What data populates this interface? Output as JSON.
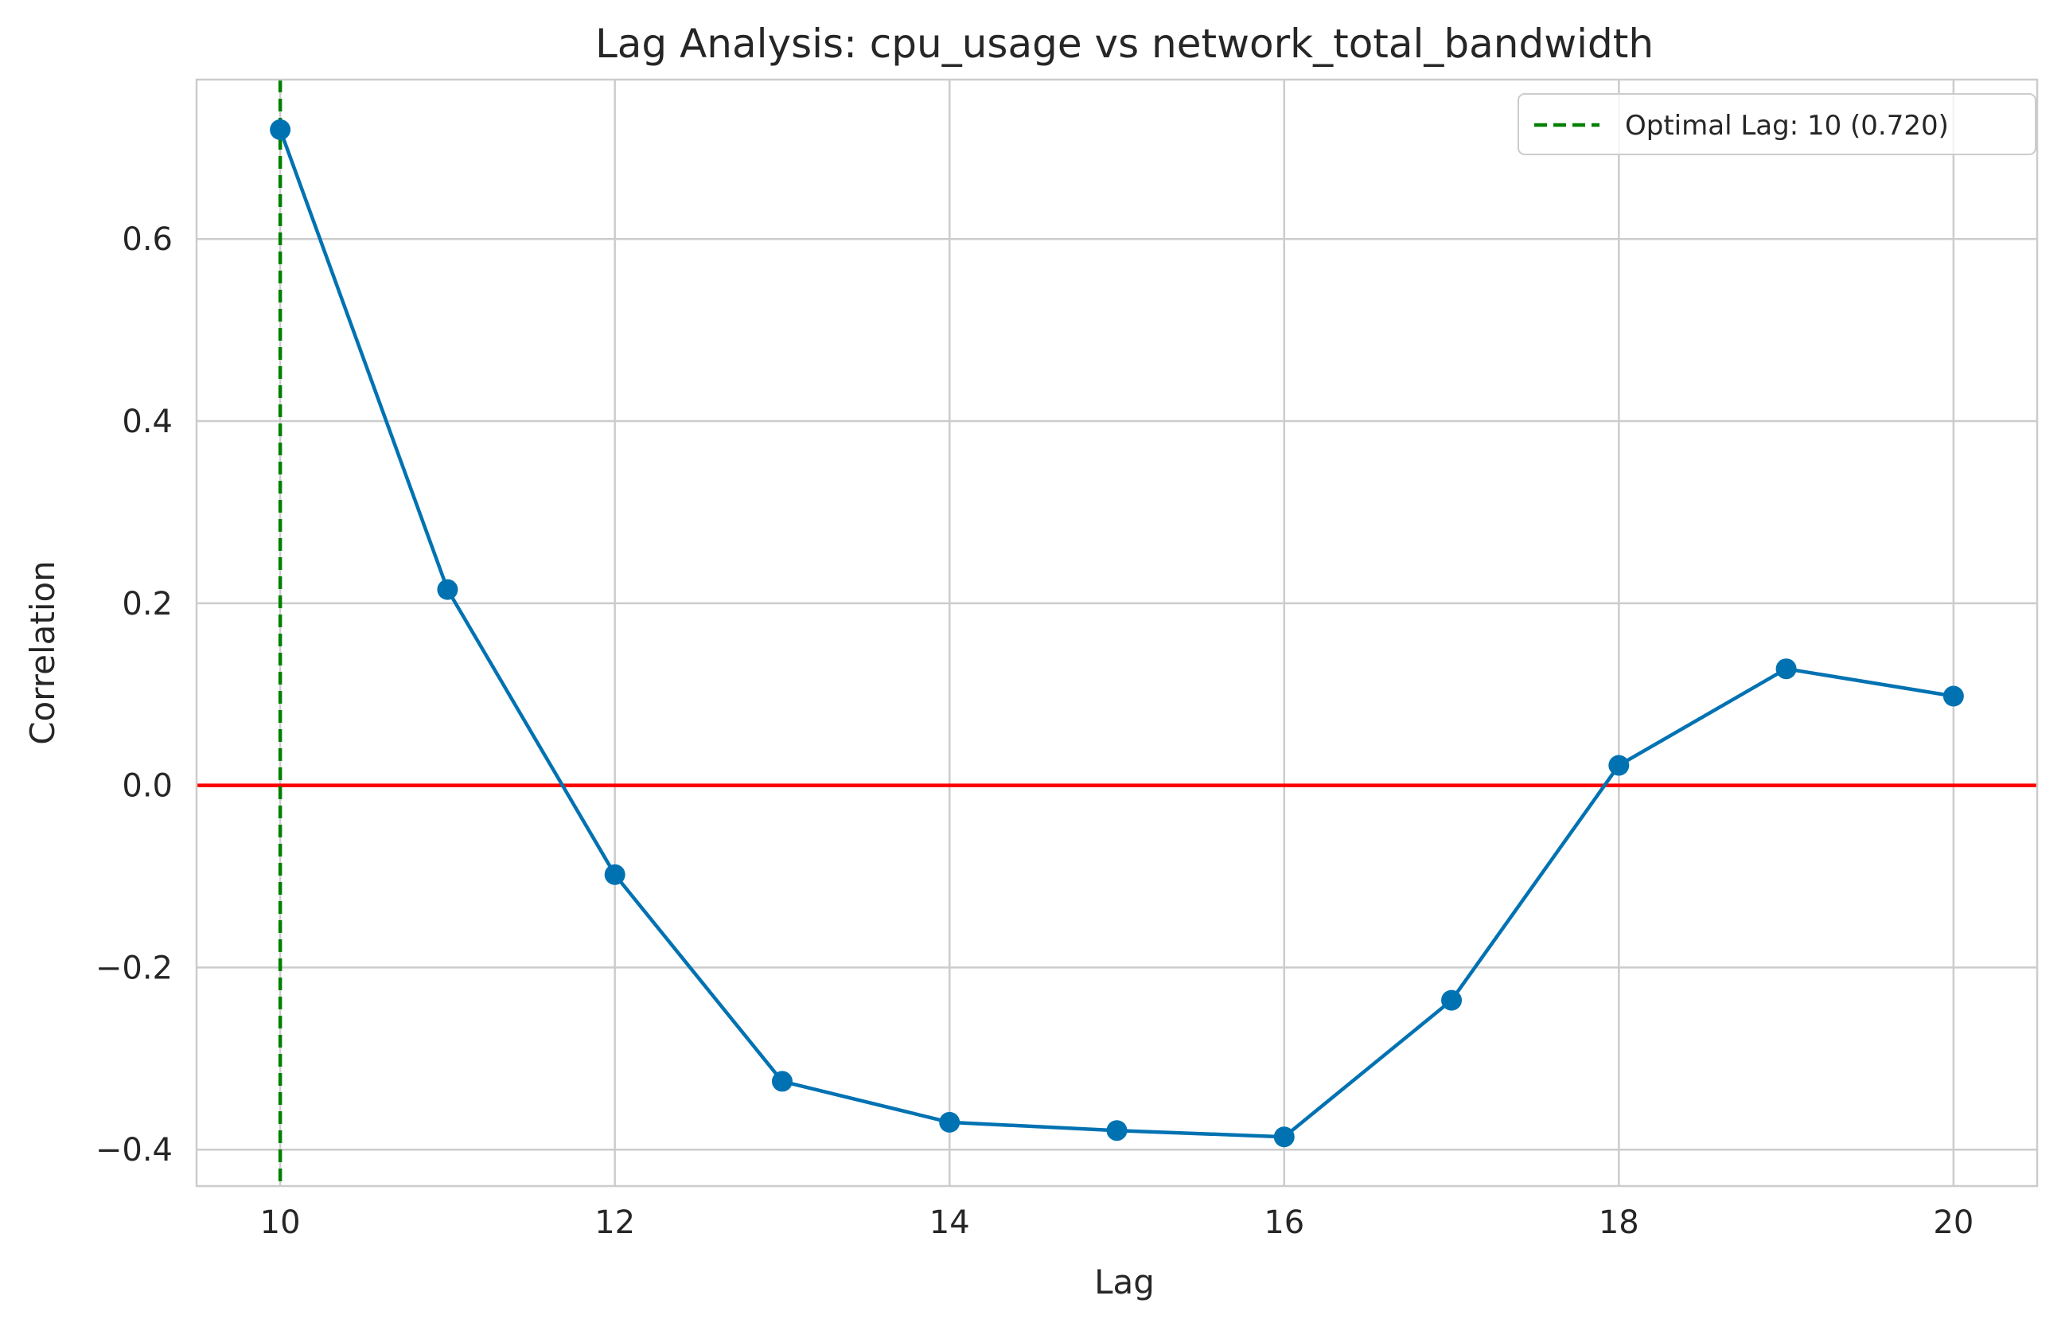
{
  "chart_data": {
    "type": "line",
    "title": "Lag Analysis: cpu_usage vs network_total_bandwidth",
    "xlabel": "Lag",
    "ylabel": "Correlation",
    "xlim": [
      9.5,
      20.5
    ],
    "ylim": [
      -0.44,
      0.775
    ],
    "x_ticks": [
      10,
      12,
      14,
      16,
      18,
      20
    ],
    "x_tick_labels": [
      "10",
      "12",
      "14",
      "16",
      "18",
      "20"
    ],
    "y_ticks": [
      0.6,
      0.4,
      0.2,
      0.0,
      -0.2,
      -0.4
    ],
    "y_tick_labels": [
      "0.6",
      "0.4",
      "0.2",
      "0.0",
      "−0.2",
      "−0.4"
    ],
    "grid": true,
    "series": [
      {
        "x": [
          10,
          11,
          12,
          13,
          14,
          15,
          16,
          17,
          18,
          19,
          20
        ],
        "values": [
          0.72,
          0.215,
          -0.098,
          -0.325,
          -0.37,
          -0.379,
          -0.386,
          -0.236,
          0.022,
          0.128,
          0.098
        ],
        "color": "#0072b2",
        "marker": "circle"
      }
    ],
    "reference_lines": [
      {
        "orientation": "horizontal",
        "value": 0.0,
        "color": "#ff0000",
        "style": "solid"
      },
      {
        "orientation": "vertical",
        "value": 10,
        "color": "#008000",
        "style": "dashed",
        "label": "Optimal Lag: 10 (0.720)"
      }
    ],
    "legend": {
      "position": "upper-right",
      "entries": [
        "Optimal Lag: 10 (0.720)"
      ]
    }
  }
}
